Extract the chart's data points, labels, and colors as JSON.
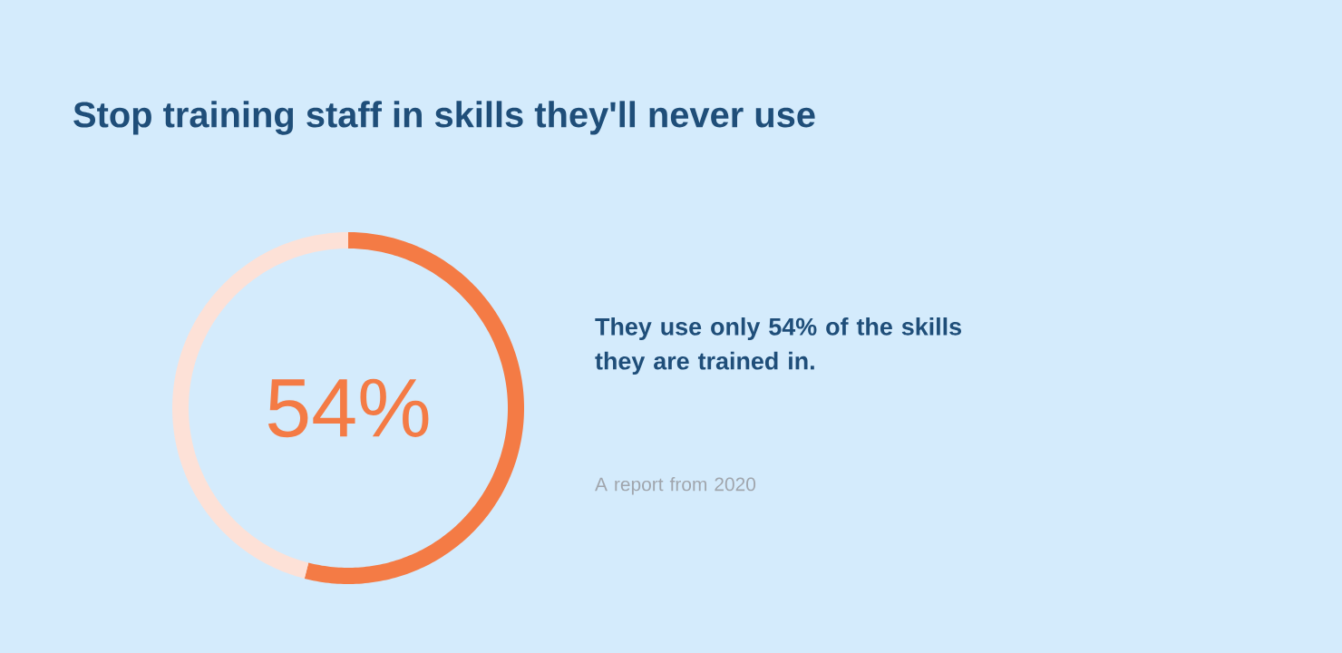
{
  "chart_data": {
    "type": "donut",
    "title": "Stop training staff in skills they'll never use",
    "categories": [
      null,
      null
    ],
    "values": [
      54,
      46
    ],
    "colors": [
      "#f47b45",
      "#fde1d7"
    ],
    "annotations": [
      "54%",
      "They use only 54% of the skills they are trained in.",
      "A report from 2020"
    ]
  }
}
